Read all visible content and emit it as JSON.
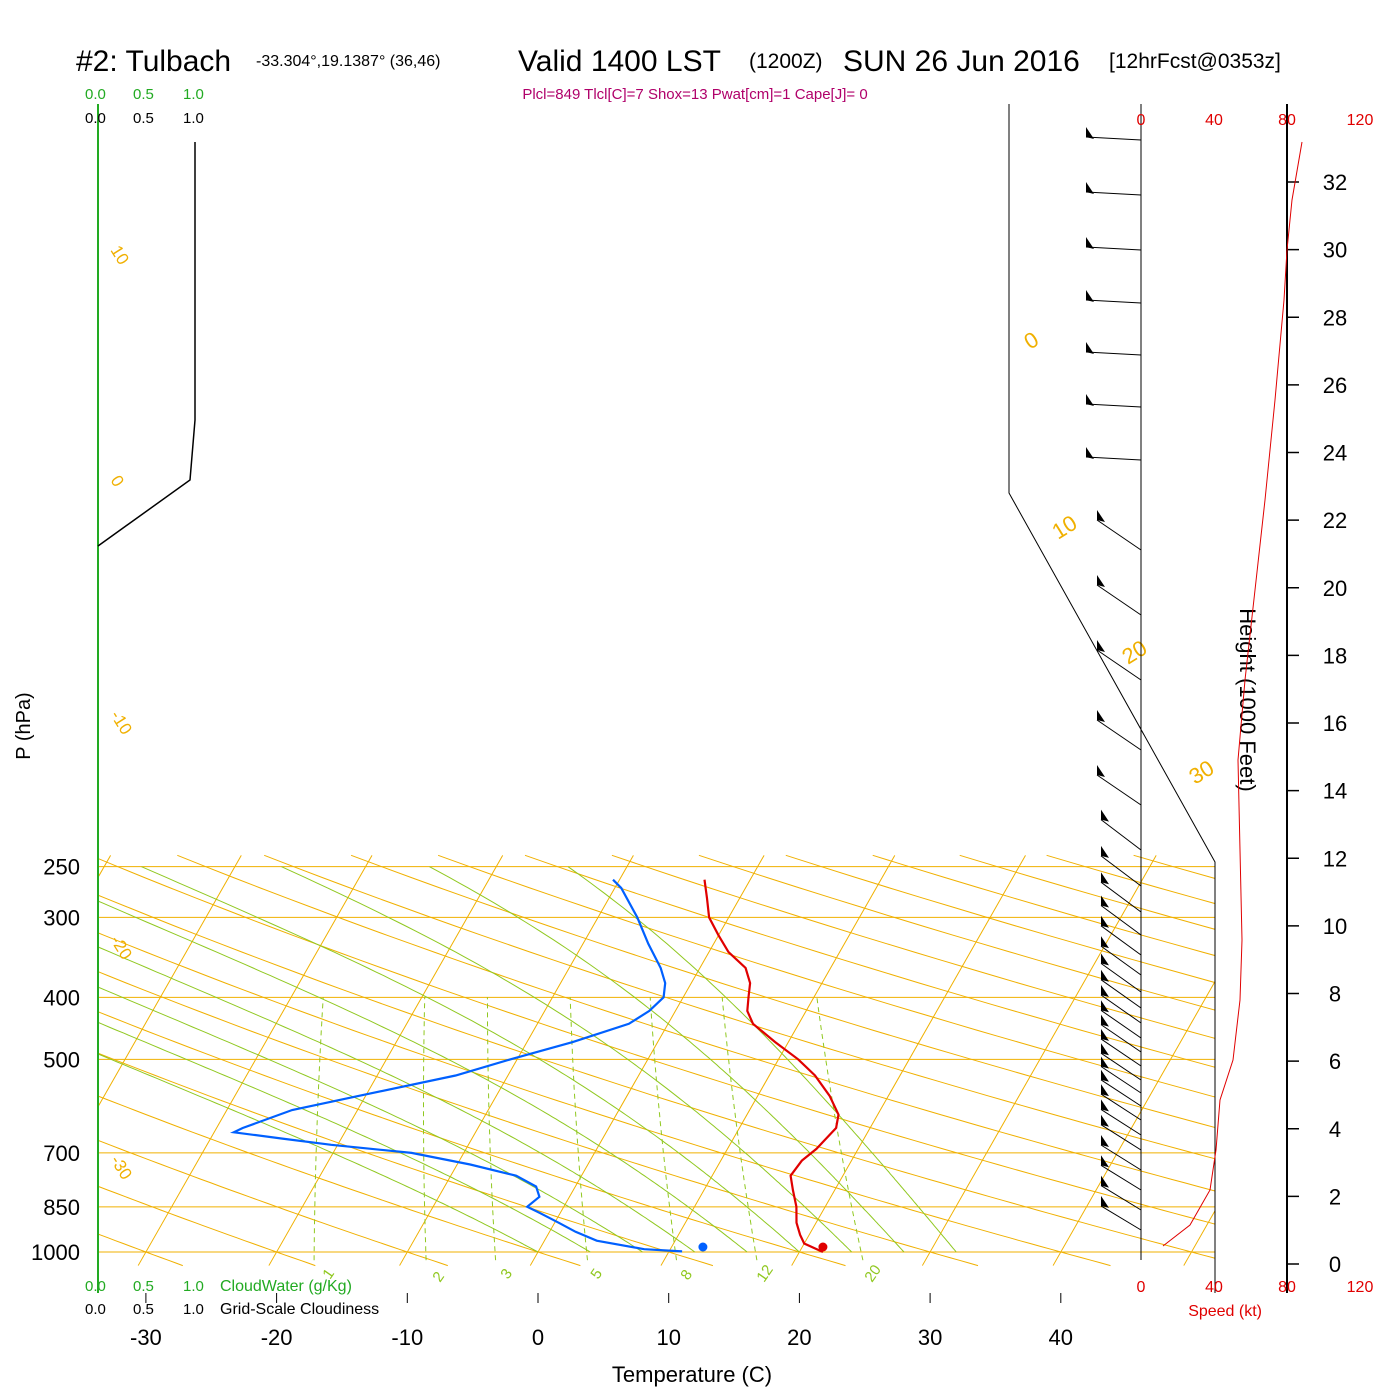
{
  "header": {
    "station": "#2: Tulbach",
    "coords": "-33.304°,19.1387° (36,46)",
    "valid": "Valid 1400 LST",
    "utc": "(1200Z)",
    "date": "SUN 26 Jun 2016",
    "fcst": "[12hrFcst@0353z]",
    "indices": "Plcl=849 Tlcl[C]=7 Shox=13 Pwat[cm]=1 Cape[J]= 0"
  },
  "colors": {
    "temperature": "#e00000",
    "dewpoint": "#0060ff",
    "isotherm": "#f0b000",
    "mixing_ratio": "#90c820",
    "cloudwater": "#22aa22",
    "speed": "#e00000",
    "indices": "#b0006a"
  },
  "chart_data": {
    "type": "line",
    "title": "Valid 1400 LST (1200Z) SUN 26 Jun 2016",
    "xlabel": "Temperature (C)",
    "ylabel": "P (hPa)",
    "xlim": [
      -34,
      36
    ],
    "ylim": [
      1030,
      250
    ],
    "y_scale": "log",
    "x_ticks": [
      -30,
      -20,
      -10,
      0,
      10,
      20,
      30,
      40
    ],
    "pressure_ticks": [
      250,
      300,
      400,
      500,
      700,
      850,
      1000
    ],
    "series": [
      {
        "values": [
          [
            1000,
            21.8
          ],
          [
            970,
            20.0
          ],
          [
            940,
            19.3
          ],
          [
            900,
            18.5
          ],
          [
            850,
            17.8
          ],
          [
            800,
            16.8
          ],
          [
            760,
            16.0
          ],
          [
            720,
            16.2
          ],
          [
            690,
            16.8
          ],
          [
            640,
            17.4
          ],
          [
            610,
            17.0
          ],
          [
            570,
            15.5
          ],
          [
            530,
            13.5
          ],
          [
            500,
            11.5
          ],
          [
            470,
            9.0
          ],
          [
            440,
            6.5
          ],
          [
            420,
            5.5
          ],
          [
            400,
            5.0
          ],
          [
            380,
            4.5
          ],
          [
            360,
            3.5
          ],
          [
            340,
            1.5
          ],
          [
            320,
            0.0
          ],
          [
            300,
            -1.5
          ],
          [
            280,
            -2.5
          ],
          [
            262,
            -3.5
          ]
        ]
      },
      {
        "values": [
          [
            998,
            11.0
          ],
          [
            990,
            8.0
          ],
          [
            960,
            4.0
          ],
          [
            930,
            2.0
          ],
          [
            900,
            0.3
          ],
          [
            870,
            -1.5
          ],
          [
            850,
            -2.8
          ],
          [
            820,
            -2.3
          ],
          [
            790,
            -3.0
          ],
          [
            760,
            -5.0
          ],
          [
            730,
            -9.0
          ],
          [
            700,
            -14.0
          ],
          [
            680,
            -20.5
          ],
          [
            665,
            -24.5
          ],
          [
            650,
            -28.5
          ],
          [
            640,
            -28.0
          ],
          [
            600,
            -25.0
          ],
          [
            570,
            -20.5
          ],
          [
            530,
            -14.0
          ],
          [
            500,
            -10.5
          ],
          [
            470,
            -6.5
          ],
          [
            440,
            -3.0
          ],
          [
            420,
            -2.0
          ],
          [
            400,
            -1.5
          ],
          [
            380,
            -2.0
          ],
          [
            360,
            -3.0
          ],
          [
            330,
            -5.0
          ],
          [
            300,
            -7.0
          ],
          [
            270,
            -9.5
          ],
          [
            262,
            -10.5
          ]
        ]
      }
    ],
    "surface_points": {
      "temperature": 21.8,
      "dewpoint": 13.0,
      "pressure": 1000
    },
    "isotherm_labels": [
      "10",
      "0",
      "-10",
      "-20",
      "-30"
    ],
    "right_isotherm_labels": [
      "0",
      "10",
      "20",
      "30"
    ],
    "mixing_ratio_labels": [
      "1",
      "2",
      "3",
      "5",
      "8",
      "12",
      "20"
    ],
    "cloud_scale": {
      "green": [
        "0.0",
        "0.5",
        "1.0"
      ],
      "black": [
        "0.0",
        "0.5",
        "1.0"
      ],
      "cloudwater_label": "CloudWater (g/Kg)",
      "cloudiness_label": "Grid-Scale Cloudiness"
    },
    "wind": {
      "speed_ticks": [
        "0",
        "40",
        "80",
        "120"
      ],
      "speed_label": "Speed (kt)"
    },
    "height_axis": {
      "label": "Height (1000 Feet)",
      "ticks": [
        "0",
        "2",
        "4",
        "6",
        "8",
        "10",
        "12",
        "14",
        "16",
        "18",
        "20",
        "22",
        "24",
        "26",
        "28",
        "30",
        "32"
      ]
    }
  }
}
